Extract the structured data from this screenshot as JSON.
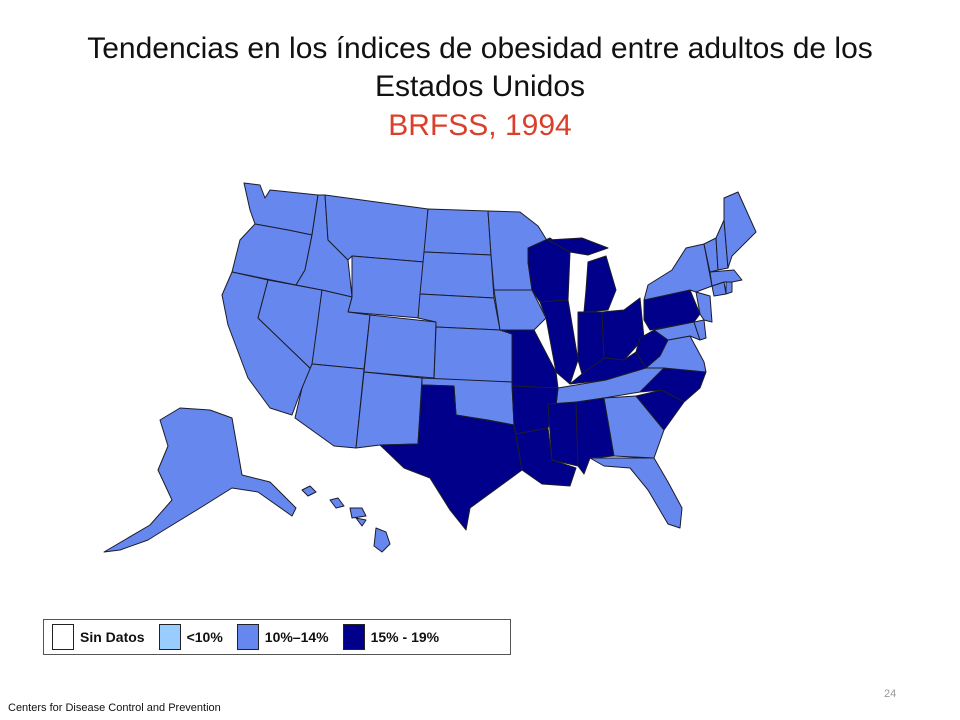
{
  "title": "Tendencias en los índices de obesidad entre adultos de los Estados Unidos",
  "subtitle": "BRFSS, 1994",
  "colors": {
    "subtitle": "#d9402b",
    "no_data": "#ffffff",
    "lt10": "#99ccff",
    "c10_14": "#6688ee",
    "c15_19": "#00008b",
    "border": "#1c1c2a"
  },
  "legend": [
    {
      "label": "Sin Datos",
      "category": "no_data"
    },
    {
      "label": "<10%",
      "category": "lt10"
    },
    {
      "label": "10%–14%",
      "category": "c10_14"
    },
    {
      "label": "15% - 19%",
      "category": "c15_19"
    }
  ],
  "states": {
    "10%–14%": [
      "WA",
      "OR",
      "CA",
      "NV",
      "ID",
      "MT",
      "WY",
      "UT",
      "AZ",
      "CO",
      "NM",
      "ND",
      "SD",
      "NE",
      "KS",
      "OK",
      "MN",
      "IA",
      "ME",
      "NH",
      "VT",
      "NY",
      "MA",
      "CT",
      "RI",
      "NJ",
      "DE",
      "MD",
      "VA",
      "GA",
      "FL",
      "AK",
      "HI",
      "TN"
    ],
    "15% - 19%": [
      "TX",
      "LA",
      "AR",
      "MO",
      "MS",
      "AL",
      "WI",
      "MI",
      "IL",
      "IN",
      "OH",
      "KY",
      "WV",
      "PA",
      "NC",
      "SC"
    ]
  },
  "source": "Centers for Disease Control and Prevention",
  "page_number": "24"
}
